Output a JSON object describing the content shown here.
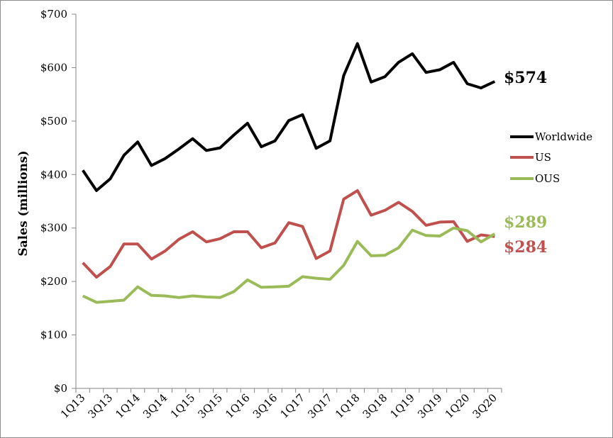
{
  "chart_data": {
    "type": "line",
    "ylabel": "Sales (millions)",
    "ylim": [
      0,
      700
    ],
    "yticks": [
      0,
      100,
      200,
      300,
      400,
      500,
      600,
      700
    ],
    "ytick_labels": [
      "$0",
      "$100",
      "$200",
      "$300",
      "$400",
      "$500",
      "$600",
      "$700"
    ],
    "x": [
      "1Q13",
      "2Q13",
      "3Q13",
      "4Q13",
      "1Q14",
      "2Q14",
      "3Q14",
      "4Q14",
      "1Q15",
      "2Q15",
      "3Q15",
      "4Q15",
      "1Q16",
      "2Q16",
      "3Q16",
      "4Q16",
      "1Q17",
      "2Q17",
      "3Q17",
      "4Q17",
      "1Q18",
      "2Q18",
      "3Q18",
      "4Q18",
      "1Q19",
      "2Q19",
      "3Q19",
      "4Q19",
      "1Q20",
      "2Q20",
      "3Q20"
    ],
    "xtick_labels": [
      "1Q13",
      "3Q13",
      "1Q14",
      "3Q14",
      "1Q15",
      "3Q15",
      "1Q16",
      "3Q16",
      "1Q17",
      "3Q17",
      "1Q18",
      "3Q18",
      "1Q19",
      "3Q19",
      "1Q20",
      "3Q20"
    ],
    "grid": false,
    "legend_position": "right",
    "series": [
      {
        "name": "Worldwide",
        "color": "#000000",
        "values": [
          408,
          370,
          392,
          436,
          461,
          417,
          430,
          448,
          467,
          445,
          450,
          474,
          496,
          452,
          463,
          501,
          512,
          449,
          463,
          585,
          645,
          573,
          583,
          610,
          626,
          591,
          596,
          610,
          570,
          562,
          574
        ],
        "end_label": "$574"
      },
      {
        "name": "US",
        "color": "#c0504d",
        "values": [
          235,
          208,
          228,
          270,
          270,
          242,
          257,
          279,
          293,
          274,
          280,
          293,
          293,
          263,
          272,
          310,
          303,
          243,
          257,
          354,
          370,
          324,
          333,
          348,
          331,
          305,
          311,
          312,
          275,
          287,
          284
        ],
        "end_label": "$284"
      },
      {
        "name": "OUS",
        "color": "#9bbb59",
        "values": [
          173,
          161,
          163,
          165,
          190,
          174,
          173,
          170,
          173,
          171,
          170,
          181,
          203,
          189,
          190,
          191,
          209,
          206,
          204,
          230,
          275,
          248,
          249,
          263,
          296,
          286,
          285,
          300,
          295,
          274,
          289
        ],
        "end_label": "$289"
      }
    ]
  }
}
